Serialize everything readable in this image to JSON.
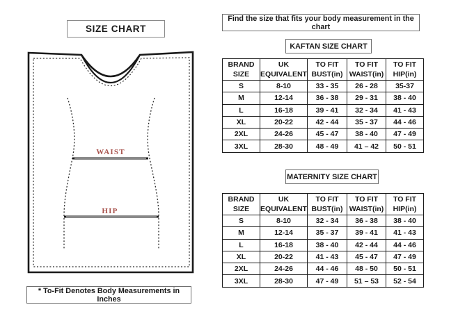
{
  "left": {
    "title": "SIZE CHART",
    "footnote": "* To-Fit Denotes Body Measurements in Inches",
    "diagram": {
      "waist_label": "WAIST",
      "hip_label": "HIP",
      "label_color": "#a8524c",
      "line_color": "#1a1a1a"
    }
  },
  "right": {
    "instruction": "Find the size that fits your body measurement in the chart",
    "tables": [
      {
        "title": "KAFTAN SIZE CHART",
        "headers": [
          "BRAND\nSIZE",
          "UK\nEQUIVALENT",
          "TO FIT\nBUST(in)",
          "TO FIT\nWAIST(in)",
          "TO FIT\nHIP(in)"
        ],
        "rows": [
          [
            "S",
            "8-10",
            "33 - 35",
            "26 - 28",
            "35-37"
          ],
          [
            "M",
            "12-14",
            "36 - 38",
            "29 - 31",
            "38 - 40"
          ],
          [
            "L",
            "16-18",
            "39 - 41",
            "32 - 34",
            "41 - 43"
          ],
          [
            "XL",
            "20-22",
            "42 - 44",
            "35 - 37",
            "44 - 46"
          ],
          [
            "2XL",
            "24-26",
            "45 - 47",
            "38 - 40",
            "47 - 49"
          ],
          [
            "3XL",
            "28-30",
            "48 - 49",
            "41 – 42",
            "50 - 51"
          ]
        ]
      },
      {
        "title": "MATERNITY SIZE CHART",
        "headers": [
          "BRAND\nSIZE",
          "UK\nEQUIVALENT",
          "TO FIT\nBUST(in)",
          "TO FIT\nWAIST(in)",
          "TO FIT\nHIP(in)"
        ],
        "rows": [
          [
            "S",
            "8-10",
            "32 - 34",
            "36 - 38",
            "38 - 40"
          ],
          [
            "M",
            "12-14",
            "35 - 37",
            "39 - 41",
            "41 - 43"
          ],
          [
            "L",
            "16-18",
            "38 - 40",
            "42 - 44",
            "44 - 46"
          ],
          [
            "XL",
            "20-22",
            "41 - 43",
            "45 - 47",
            "47 - 49"
          ],
          [
            "2XL",
            "24-26",
            "44 - 46",
            "48 - 50",
            "50 - 51"
          ],
          [
            "3XL",
            "28-30",
            "47 - 49",
            "51 – 53",
            "52 - 54"
          ]
        ]
      }
    ]
  }
}
